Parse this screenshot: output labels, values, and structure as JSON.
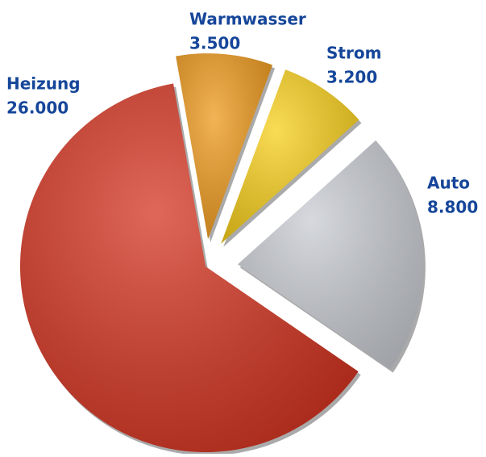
{
  "chart_data": {
    "type": "pie",
    "categories": [
      "Warmwasser",
      "Strom",
      "Auto",
      "Heizung"
    ],
    "values": [
      3500,
      3200,
      8800,
      26000
    ],
    "value_labels": [
      "3.500",
      "3.200",
      "8.800",
      "26.000"
    ],
    "colors": [
      "#ee9a1e",
      "#f8cf1c",
      "#c9ccd3",
      "#d43522"
    ]
  }
}
